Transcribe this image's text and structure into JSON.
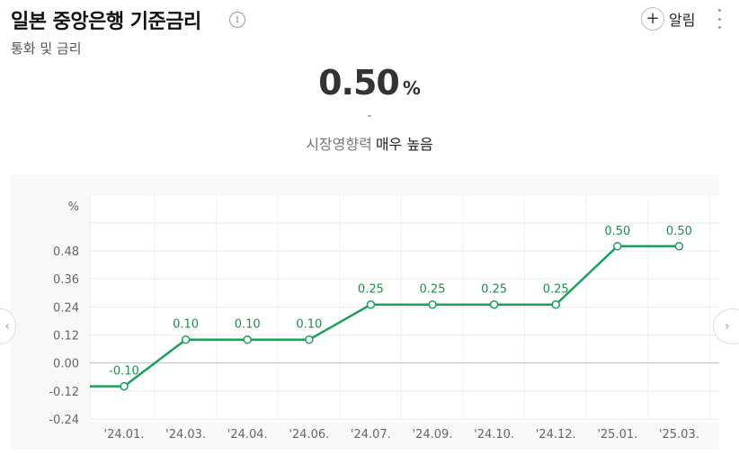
{
  "header": {
    "title": "일본 중앙은행 기준금리",
    "info_icon": "info-icon",
    "subtitle": "통화 및 금리",
    "alert_label": "알림",
    "alert_icon": "plus-icon",
    "more_icon": "more-vertical-icon"
  },
  "summary": {
    "value": "0.50",
    "unit": "%",
    "change": "-",
    "impact_label": "시장영향력",
    "impact_level": "매우 높음"
  },
  "colors": {
    "line": "#1aa05a",
    "zero_line": "#a6c8e8",
    "grid": "#eaeaea",
    "label": "#1a8f4e"
  },
  "chart_data": {
    "type": "line",
    "y_unit_label": "%",
    "categories": [
      "'24.01.",
      "'24.03.",
      "'24.04.",
      "'24.06.",
      "'24.07.",
      "'24.09.",
      "'24.10.",
      "'24.12.",
      "'25.01.",
      "'25.03."
    ],
    "series": [
      {
        "values": [
          -0.1,
          0.1,
          0.1,
          0.1,
          0.25,
          0.25,
          0.25,
          0.25,
          0.5,
          0.5
        ],
        "labels": [
          "-0.10",
          "0.10",
          "0.10",
          "0.10",
          "0.25",
          "0.25",
          "0.25",
          "0.25",
          "0.50",
          "0.50"
        ]
      }
    ],
    "yticks": [
      0.48,
      0.36,
      0.24,
      0.12,
      0.0,
      -0.12,
      -0.24
    ],
    "ytick_labels": [
      "0.48",
      "0.36",
      "0.24",
      "0.12",
      "0.00",
      "-0.12",
      "-0.24"
    ],
    "ylim": [
      -0.24,
      0.48
    ],
    "grid": true,
    "legend": "none"
  }
}
